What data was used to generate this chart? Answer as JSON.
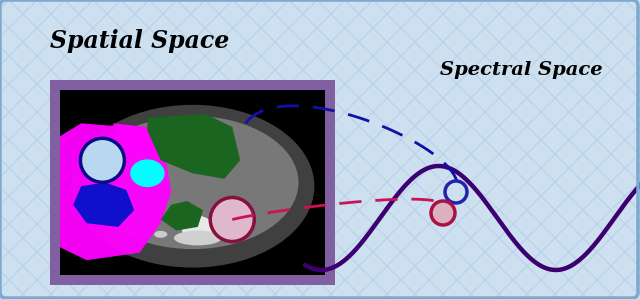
{
  "bg_color": "#cde0f0",
  "outer_border_color": "#7aaad0",
  "spatial_label": "Spatial Space",
  "spectral_label": "Spectral Space",
  "wave_color": "#3d0070",
  "wave_lw": 3.2,
  "blue_dot_color": "#2222aa",
  "red_dot_color": "#aa1144",
  "red_dot_fill": "#ddb0c0",
  "arrow_blue_color": "#1111aa",
  "arrow_red_color": "#cc1155",
  "hatch_color": "#b8d0e8",
  "img_border_color": "#9070a0",
  "img_border_fill": "#8060a0"
}
